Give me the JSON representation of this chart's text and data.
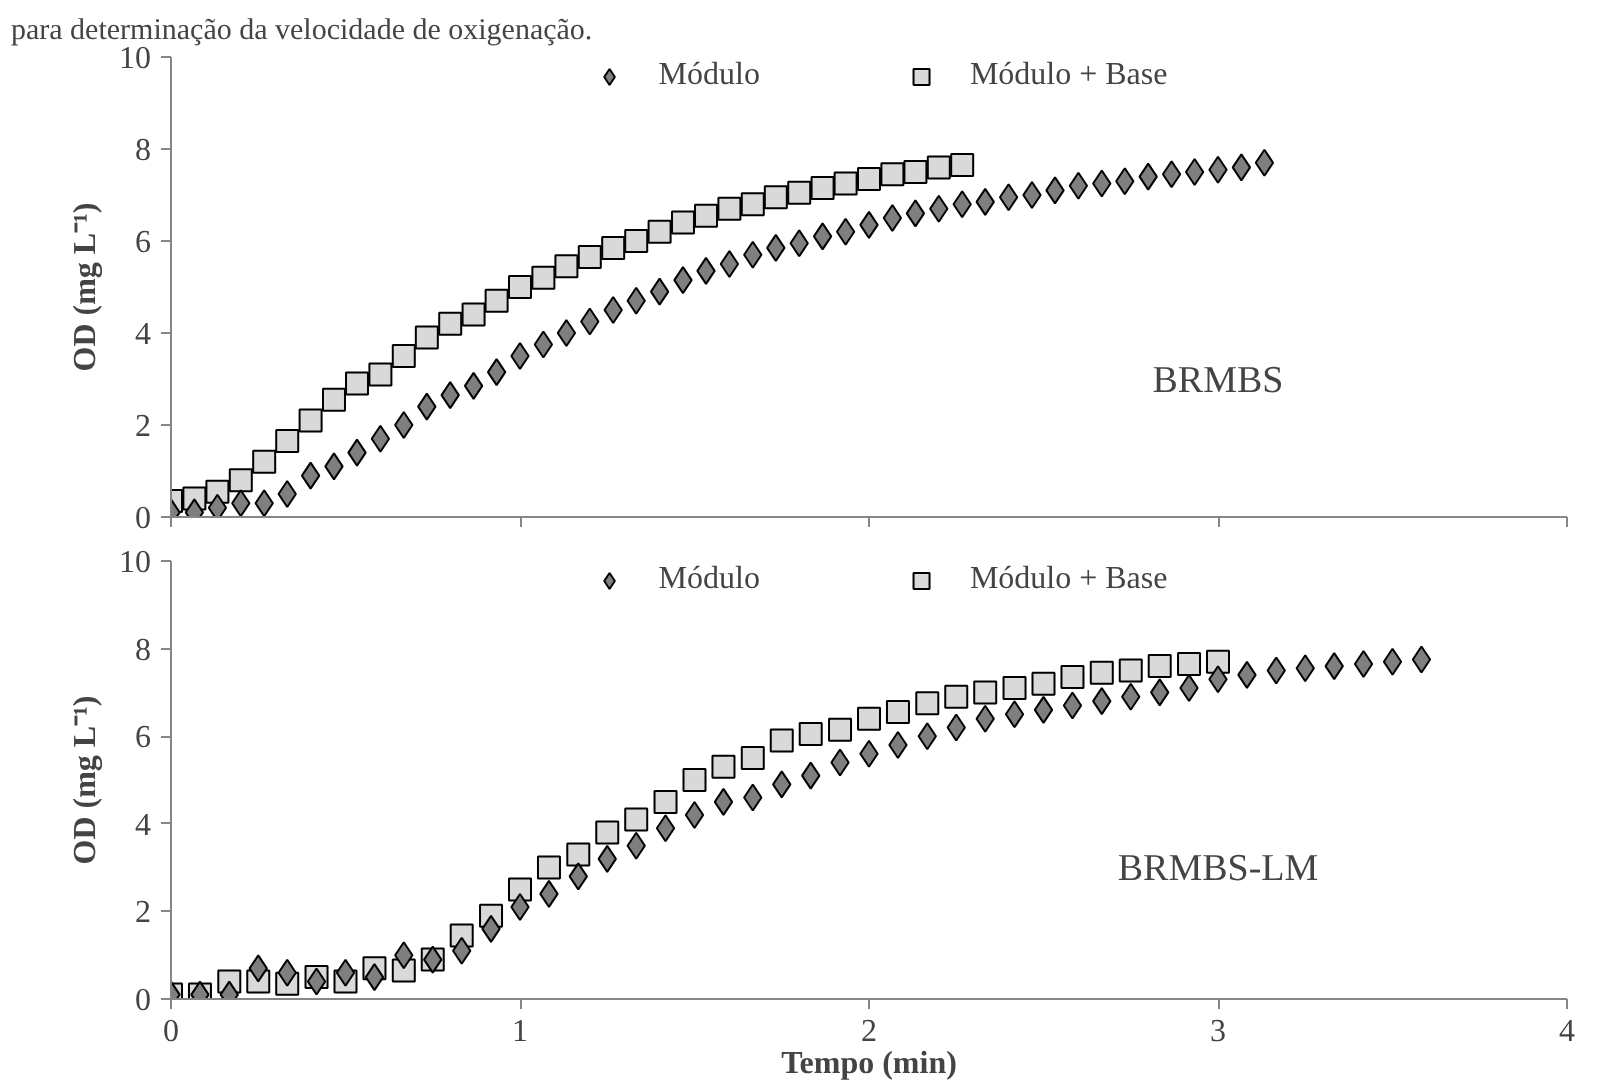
{
  "chart_data": [
    {
      "type": "scatter",
      "ylabel": "OD (mg L⁻¹)",
      "annotations": [
        "para determinação da velocidade de oxigenação.",
        "BRMBS"
      ],
      "xlim": [
        0,
        4
      ],
      "xticks": [
        0,
        1,
        2,
        3,
        4
      ],
      "ylim": [
        0,
        10
      ],
      "yticks": [
        0,
        2,
        4,
        6,
        8,
        10
      ],
      "tick_labels": "y",
      "legend": "top",
      "grid": false,
      "series": [
        {
          "name": "Módulo",
          "color": "#7f7f7f",
          "marker": "diamond",
          "x": [
            0,
            0.067,
            0.133,
            0.2,
            0.267,
            0.333,
            0.4,
            0.467,
            0.533,
            0.6,
            0.667,
            0.733,
            0.8,
            0.867,
            0.933,
            1.0,
            1.067,
            1.133,
            1.2,
            1.267,
            1.333,
            1.4,
            1.467,
            1.533,
            1.6,
            1.667,
            1.733,
            1.8,
            1.867,
            1.933,
            2.0,
            2.067,
            2.133,
            2.2,
            2.267,
            2.333,
            2.4,
            2.467,
            2.533,
            2.6,
            2.667,
            2.733,
            2.8,
            2.867,
            2.933,
            3.0,
            3.067,
            3.133
          ],
          "values": [
            0.1,
            0.1,
            0.2,
            0.3,
            0.3,
            0.5,
            0.9,
            1.1,
            1.4,
            1.7,
            2.0,
            2.4,
            2.65,
            2.85,
            3.15,
            3.5,
            3.75,
            4.0,
            4.25,
            4.5,
            4.7,
            4.9,
            5.15,
            5.35,
            5.5,
            5.7,
            5.85,
            5.95,
            6.1,
            6.2,
            6.35,
            6.5,
            6.6,
            6.7,
            6.8,
            6.85,
            6.95,
            7.0,
            7.1,
            7.2,
            7.25,
            7.3,
            7.4,
            7.45,
            7.5,
            7.55,
            7.6,
            7.7
          ]
        },
        {
          "name": "Módulo + Base",
          "color": "#d9d9d9",
          "marker": "square",
          "x": [
            0,
            0.067,
            0.133,
            0.2,
            0.267,
            0.333,
            0.4,
            0.467,
            0.533,
            0.6,
            0.667,
            0.733,
            0.8,
            0.867,
            0.933,
            1.0,
            1.067,
            1.133,
            1.2,
            1.267,
            1.333,
            1.4,
            1.467,
            1.533,
            1.6,
            1.667,
            1.733,
            1.8,
            1.867,
            1.933,
            2.0,
            2.067,
            2.133,
            2.2,
            2.267
          ],
          "values": [
            0.35,
            0.4,
            0.55,
            0.8,
            1.2,
            1.65,
            2.1,
            2.55,
            2.9,
            3.1,
            3.5,
            3.9,
            4.2,
            4.4,
            4.7,
            5.0,
            5.2,
            5.45,
            5.65,
            5.85,
            6.0,
            6.2,
            6.4,
            6.55,
            6.7,
            6.8,
            6.95,
            7.05,
            7.15,
            7.25,
            7.35,
            7.45,
            7.5,
            7.6,
            7.65
          ]
        }
      ]
    },
    {
      "type": "scatter",
      "xlabel": "Tempo (min)",
      "ylabel": "OD (mg L⁻¹)",
      "annotations": [
        "BRMBS-LM"
      ],
      "xlim": [
        0,
        4
      ],
      "xticks": [
        0,
        1,
        2,
        3,
        4
      ],
      "ylim": [
        0,
        10
      ],
      "yticks": [
        0,
        2,
        4,
        6,
        8,
        10
      ],
      "legend": "top",
      "grid": false,
      "series": [
        {
          "name": "Módulo",
          "color": "#7f7f7f",
          "marker": "diamond",
          "x": [
            0,
            0.083,
            0.167,
            0.25,
            0.333,
            0.417,
            0.5,
            0.583,
            0.667,
            0.75,
            0.833,
            0.917,
            1.0,
            1.083,
            1.167,
            1.25,
            1.333,
            1.417,
            1.5,
            1.583,
            1.667,
            1.75,
            1.833,
            1.917,
            2.0,
            2.083,
            2.167,
            2.25,
            2.333,
            2.417,
            2.5,
            2.583,
            2.667,
            2.75,
            2.833,
            2.917,
            3.0,
            3.083,
            3.167,
            3.25,
            3.333,
            3.417,
            3.5,
            3.583
          ],
          "values": [
            0.1,
            0.1,
            0.1,
            0.7,
            0.6,
            0.4,
            0.6,
            0.5,
            1.0,
            0.9,
            1.1,
            1.6,
            2.1,
            2.4,
            2.8,
            3.2,
            3.5,
            3.9,
            4.2,
            4.5,
            4.6,
            4.9,
            5.1,
            5.4,
            5.6,
            5.8,
            6.0,
            6.2,
            6.4,
            6.5,
            6.6,
            6.7,
            6.8,
            6.9,
            7.0,
            7.1,
            7.3,
            7.4,
            7.5,
            7.55,
            7.6,
            7.65,
            7.7,
            7.75
          ]
        },
        {
          "name": "Módulo + Base",
          "color": "#d9d9d9",
          "marker": "square",
          "x": [
            0,
            0.083,
            0.167,
            0.25,
            0.333,
            0.417,
            0.5,
            0.583,
            0.667,
            0.75,
            0.833,
            0.917,
            1.0,
            1.083,
            1.167,
            1.25,
            1.333,
            1.417,
            1.5,
            1.583,
            1.667,
            1.75,
            1.833,
            1.917,
            2.0,
            2.083,
            2.167,
            2.25,
            2.333,
            2.417,
            2.5,
            2.583,
            2.667,
            2.75,
            2.833,
            2.917,
            3.0
          ],
          "values": [
            0.1,
            0.1,
            0.4,
            0.4,
            0.35,
            0.5,
            0.4,
            0.7,
            0.65,
            0.9,
            1.45,
            1.9,
            2.5,
            3.0,
            3.3,
            3.8,
            4.1,
            4.5,
            5.0,
            5.3,
            5.5,
            5.9,
            6.05,
            6.15,
            6.4,
            6.55,
            6.75,
            6.9,
            7.0,
            7.1,
            7.2,
            7.35,
            7.45,
            7.5,
            7.6,
            7.65,
            7.7
          ]
        }
      ]
    }
  ]
}
